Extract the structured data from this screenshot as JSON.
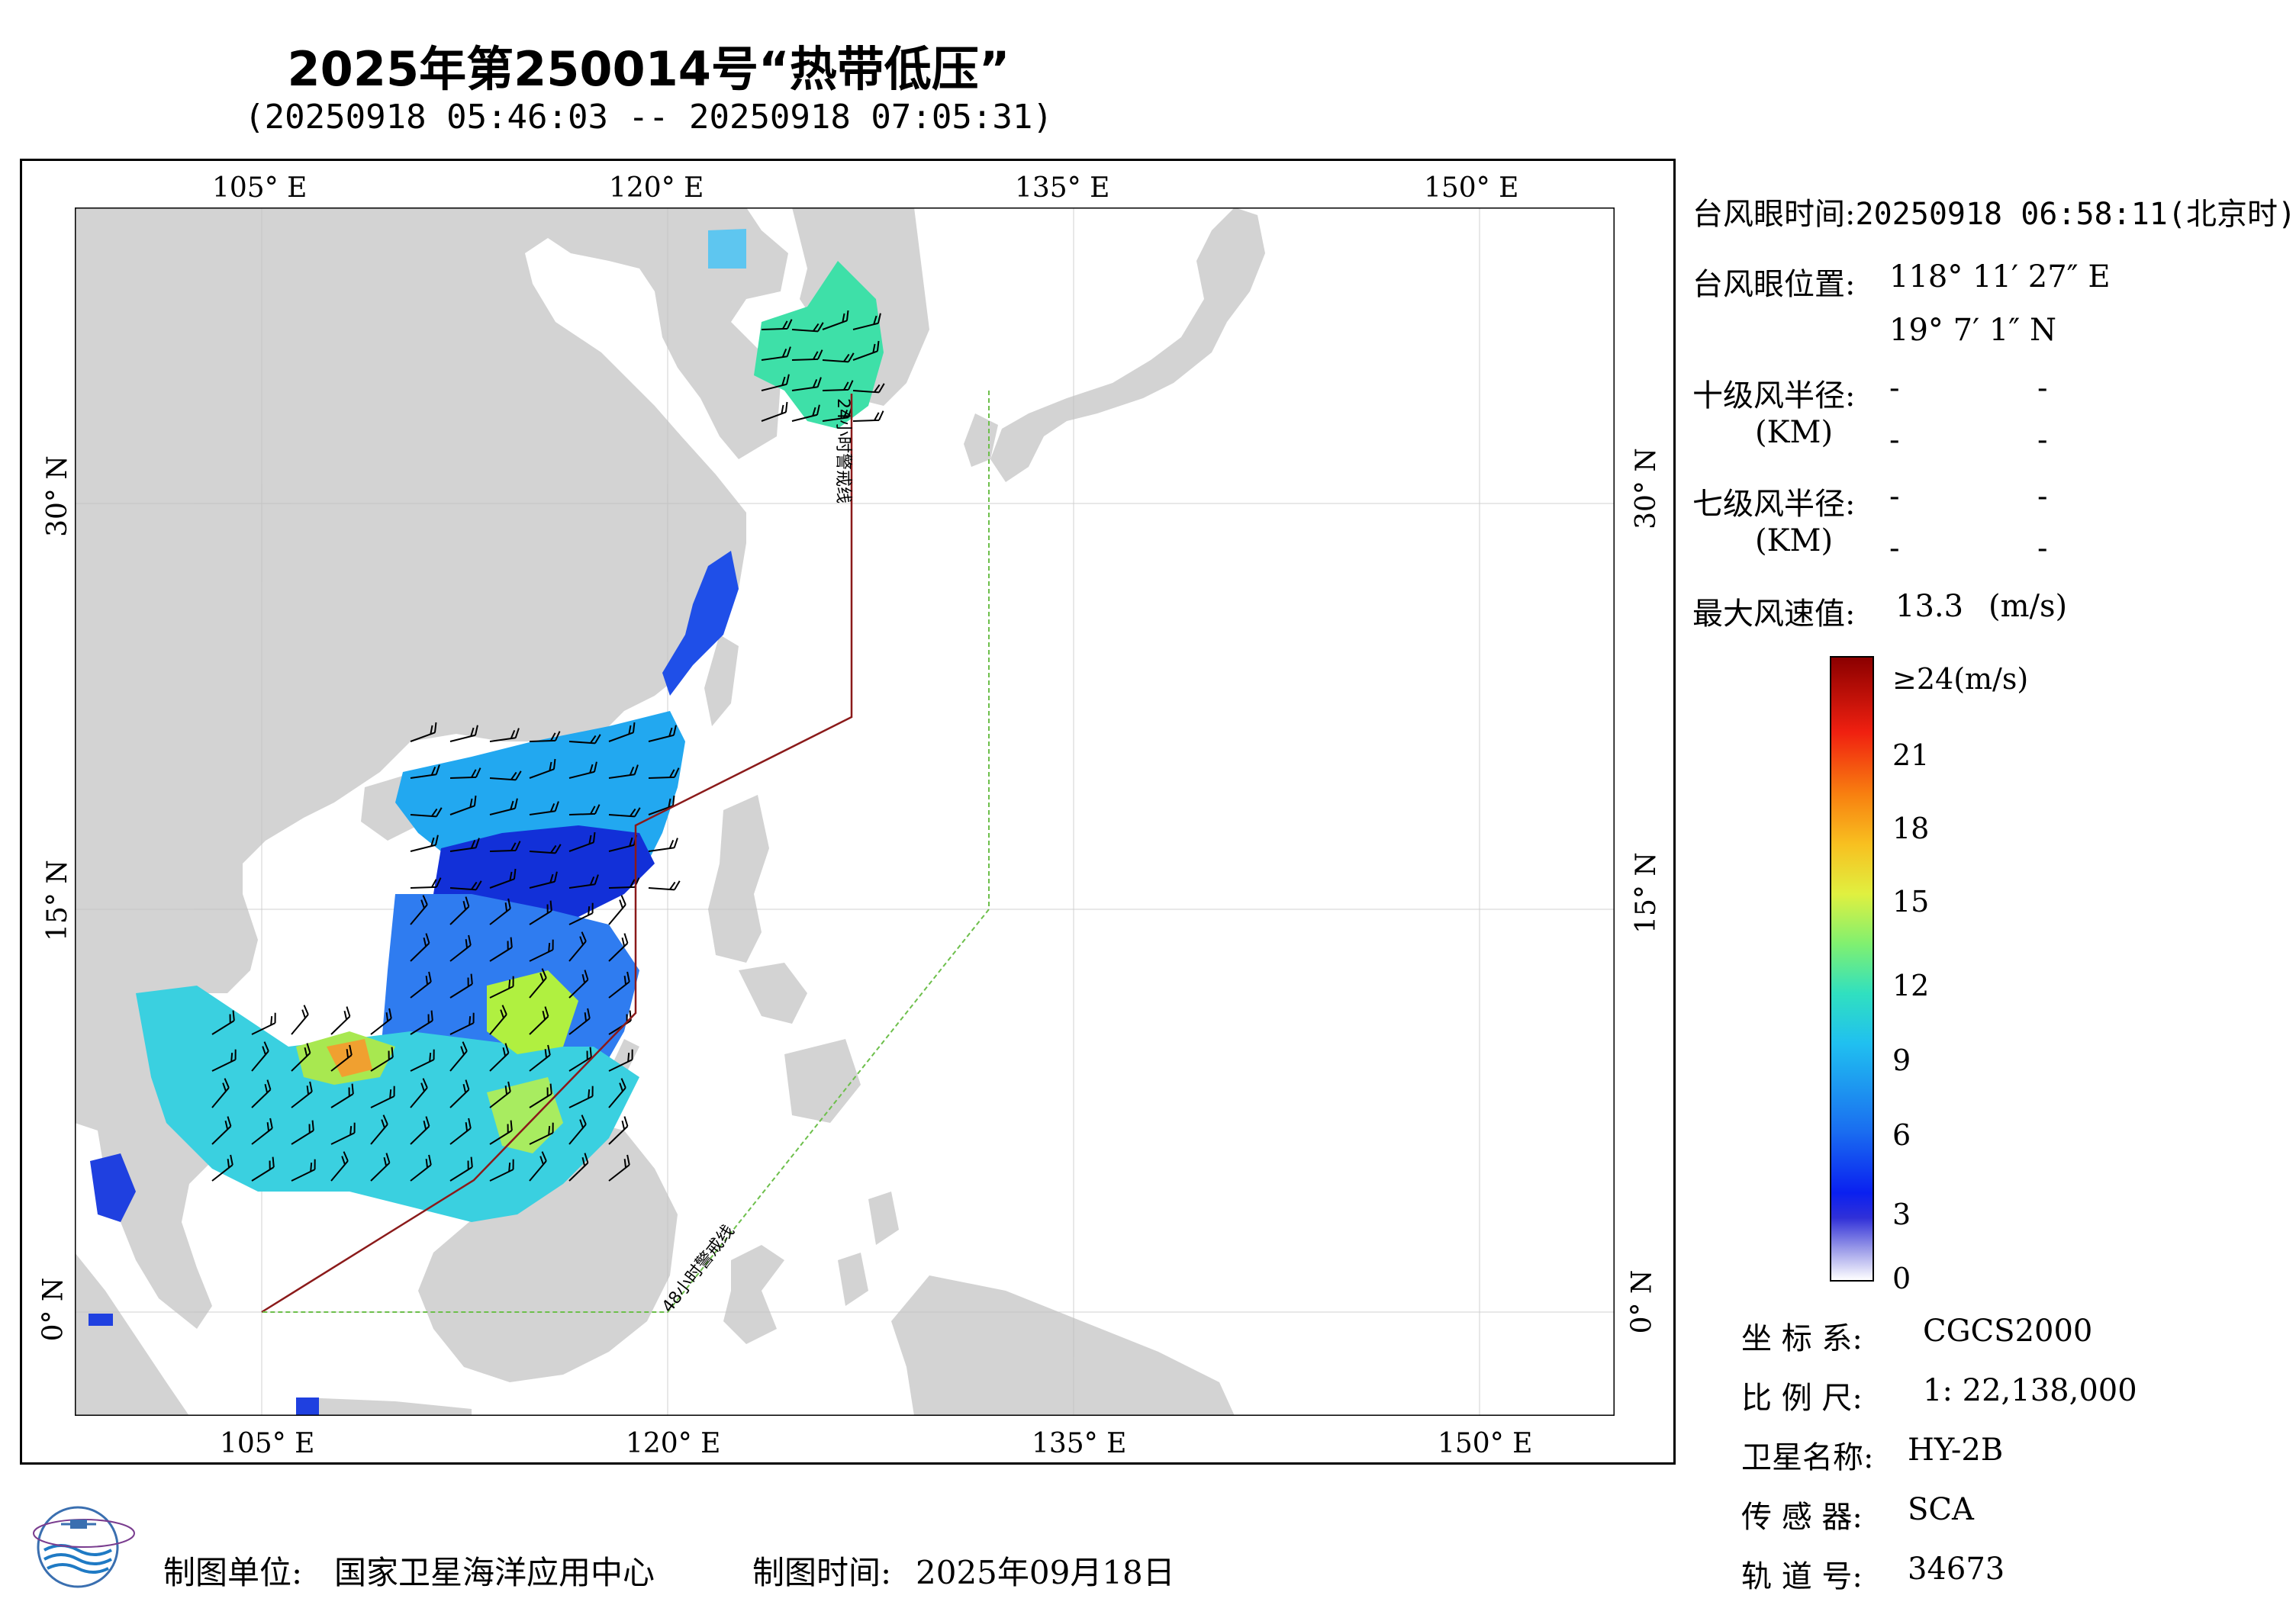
{
  "header": {
    "title": "2025年第250014号“热带低压”",
    "time_range": "(20250918 05:46:03 -- 20250918 07:05:31)"
  },
  "map": {
    "top_lon_labels": [
      "105° E",
      "120° E",
      "135° E",
      "150° E"
    ],
    "bottom_lon_labels": [
      "105° E",
      "120° E",
      "135° E",
      "150° E"
    ],
    "left_lat_labels": [
      "30° N",
      "15° N",
      "0° N"
    ],
    "right_lat_labels": [
      "30° N",
      "15° N",
      "0° N"
    ],
    "warning_line_24h": "24小时警戒线",
    "warning_line_48h": "48小时警戒线",
    "colors": {
      "land": "#d3d3d3",
      "ocean": "#ffffff",
      "line_24h": "#8b1a1a",
      "line_48h": "#6dbf4b"
    }
  },
  "info": {
    "eye_time_label": "台风眼时间:",
    "eye_time_value": "20250918 06:58:11(北京时)",
    "eye_pos_label": "台风眼位置:",
    "eye_lon": "118° 11′ 27″ E",
    "eye_lat": "19° 7′ 1″ N",
    "r10_label": "十级风半径:",
    "r7_label": "七级风半径:",
    "km_label": "(KM)",
    "dash": "-",
    "max_wind_label": "最大风速值:",
    "max_wind_value": "13.3",
    "max_wind_unit": "(m/s)"
  },
  "colorbar": {
    "top_label": "≥24(m/s)",
    "ticks": [
      "21",
      "18",
      "15",
      "12",
      "9",
      "6",
      "3",
      "0"
    ]
  },
  "meta": {
    "crs_label": "坐 标 系:",
    "crs_value": "CGCS2000",
    "scale_label": "比 例 尺:",
    "scale_value": "1: 22,138,000",
    "satellite_label": "卫星名称:",
    "satellite_value": "HY-2B",
    "sensor_label": "传 感 器:",
    "sensor_value": "SCA",
    "orbit_label": "轨 道 号:",
    "orbit_value": "34673"
  },
  "footer": {
    "org_label": "制图单位:",
    "org_value": "国家卫星海洋应用中心",
    "date_label": "制图时间:",
    "date_value": "2025年09月18日"
  }
}
